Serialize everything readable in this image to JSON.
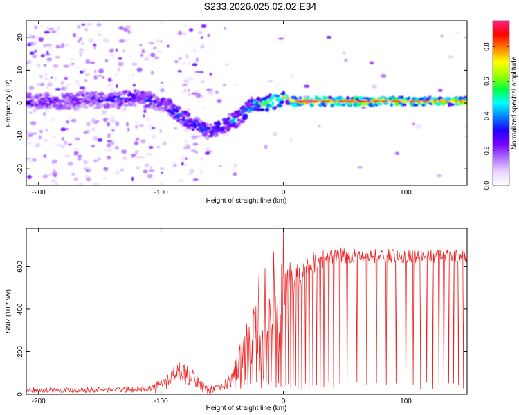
{
  "figure": {
    "title": "S233.2026.025.02.02.E34"
  },
  "chart_data": [
    {
      "type": "heatmap",
      "xlabel": "Height of straight line (km)",
      "ylabel": "Frequency (Hz)",
      "xlim": [
        -210,
        150
      ],
      "ylim": [
        -25,
        25
      ],
      "xticks": [
        -200,
        -100,
        0,
        100
      ],
      "yticks": [
        -20,
        -10,
        0,
        10,
        20
      ],
      "colorbar": {
        "label": "Normalized spectral amplitude",
        "range": [
          0,
          0.95
        ],
        "ticks": [
          0.0,
          0.2,
          0.4,
          0.6,
          0.8
        ],
        "colors": [
          "#ffffff",
          "#e9d4ff",
          "#b070ff",
          "#7a00ff",
          "#1f00ff",
          "#0080ff",
          "#00ffff",
          "#00ff40",
          "#a0ff00",
          "#ffff00",
          "#ff8000",
          "#ff0000",
          "#ff2080"
        ]
      },
      "ridge_frequency_hz": {
        "x": [
          -200,
          -180,
          -160,
          -140,
          -130,
          -120,
          -110,
          -100,
          -95,
          -90,
          -85,
          -80,
          -75,
          -70,
          -65,
          -60,
          -55,
          -50,
          -45,
          -40,
          -35,
          -30,
          -25,
          -20,
          -15,
          -10,
          -5,
          0,
          5,
          10,
          20,
          40,
          60,
          80,
          100,
          120,
          150
        ],
        "y": [
          0.5,
          0.5,
          1,
          1,
          1.5,
          1.5,
          1,
          0,
          -0.5,
          -2,
          -3.5,
          -4.5,
          -6,
          -7,
          -8,
          -9,
          -8,
          -7,
          -6,
          -5,
          -4,
          -2,
          -1,
          -0.5,
          0,
          0.3,
          1,
          2,
          1,
          0.5,
          0.5,
          0.5,
          0.5,
          0.5,
          0.5,
          0.5,
          0.5
        ]
      },
      "ridge_amplitude": {
        "x": [
          -200,
          -150,
          -130,
          -110,
          -100,
          -90,
          -80,
          -70,
          -60,
          -50,
          -40,
          -30,
          -20,
          -10,
          0,
          10,
          20,
          40,
          60,
          80,
          100,
          120,
          150
        ],
        "v": [
          0.3,
          0.3,
          0.35,
          0.35,
          0.3,
          0.4,
          0.45,
          0.4,
          0.35,
          0.45,
          0.45,
          0.45,
          0.6,
          0.65,
          0.7,
          0.8,
          0.9,
          0.85,
          0.85,
          0.85,
          0.8,
          0.8,
          0.75
        ]
      }
    },
    {
      "type": "line",
      "xlabel": "Height of straight line (km)",
      "ylabel": "SNR (10 * v/v)",
      "xlim": [
        -210,
        150
      ],
      "ylim": [
        0,
        780
      ],
      "xticks": [
        -200,
        -100,
        0,
        100
      ],
      "yticks": [
        0,
        200,
        400,
        600
      ],
      "series": [
        {
          "name": "SNR",
          "color": "#ee2222",
          "envelope_x": [
            -210,
            -150,
            -120,
            -105,
            -100,
            -95,
            -90,
            -85,
            -80,
            -75,
            -70,
            -65,
            -60,
            -55,
            -50,
            -45,
            -40,
            -35,
            -30,
            -25,
            -20,
            -15,
            -10,
            -5,
            0,
            5,
            10,
            15,
            20,
            25,
            30,
            35,
            40,
            45,
            50,
            60,
            80,
            100,
            120,
            150
          ],
          "envelope_y": [
            20,
            20,
            22,
            30,
            40,
            60,
            100,
            110,
            95,
            80,
            60,
            30,
            22,
            25,
            35,
            55,
            100,
            170,
            250,
            280,
            330,
            380,
            420,
            470,
            500,
            530,
            560,
            590,
            610,
            625,
            635,
            640,
            645,
            650,
            650,
            650,
            650,
            650,
            650,
            650
          ],
          "noise_amplitude_x": [
            -210,
            -110,
            -100,
            -80,
            -70,
            -50,
            -40,
            -30,
            -20,
            0,
            20,
            40,
            150
          ],
          "noise_amplitude_y": [
            12,
            14,
            35,
            50,
            30,
            15,
            60,
            120,
            150,
            120,
            60,
            35,
            30
          ],
          "dropouts_x": [
            -35,
            -32,
            -29,
            -27,
            -25,
            -22,
            -20,
            -18,
            -16,
            -14,
            -12,
            -10,
            -8,
            -6,
            -4,
            -2,
            2,
            4,
            6,
            8,
            10,
            12,
            15,
            18,
            21,
            24,
            27,
            30,
            33,
            37,
            41,
            46,
            52,
            60,
            68,
            76,
            84,
            92,
            100,
            106,
            112,
            117,
            122,
            127,
            131,
            135,
            139,
            143,
            147
          ],
          "spikes_x": [
            -20,
            -15,
            -8,
            0
          ],
          "spikes_y": [
            560,
            590,
            670,
            780
          ]
        }
      ]
    }
  ]
}
